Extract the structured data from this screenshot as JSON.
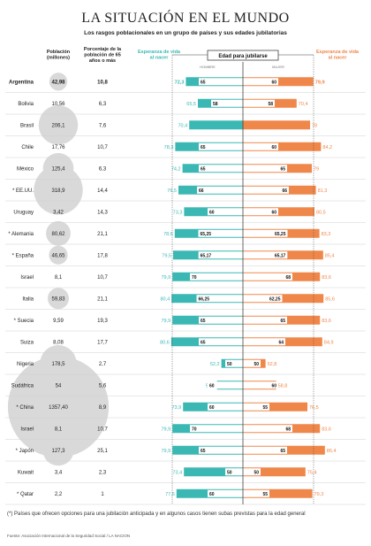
{
  "chart_data": {
    "type": "bar",
    "title": "LA SITUACIÓN EN EL MUNDO",
    "subtitle": "Los rasgos poblacionales en un grupo de países y sus edades jubilatorias",
    "columns": {
      "population": "Población (millones)",
      "pct65": "Porcentaje de la población de 65 años o más",
      "life_men": "Esperanza de vida al nacer",
      "retirement": "Edad para jubilarse",
      "men": "HOMBRE",
      "women": "MUJER",
      "life_women": "Esperanza de vida al nacer"
    },
    "xlim": [
      40,
      100
    ],
    "countries": [
      {
        "name": "Argentina",
        "population": "42,98",
        "pop": 42.98,
        "pct65": "10,8",
        "life_men": "72,3",
        "lm": 72.3,
        "ret_men": "65",
        "rm": 65,
        "ret_women": "60",
        "rw": 60,
        "life_women": "79,9",
        "lw": 79.9,
        "bold": true
      },
      {
        "name": "Bolivia",
        "population": "10,56",
        "pop": 10.56,
        "pct65": "6,3",
        "life_men": "65,5",
        "lm": 65.5,
        "ret_men": "58",
        "rm": 58,
        "ret_women": "58",
        "rw": 58,
        "life_women": "70,4",
        "lw": 70.4
      },
      {
        "name": "Brasil",
        "population": "206,1",
        "pop": 206.1,
        "pct65": "7,6",
        "life_men": "70,4",
        "lm": 70.4,
        "ret_men": "",
        "rm": null,
        "ret_women": "",
        "rw": null,
        "life_women": "78",
        "lw": 78
      },
      {
        "name": "Chile",
        "population": "17,76",
        "pop": 17.76,
        "pct65": "10,7",
        "life_men": "78,3",
        "lm": 78.3,
        "ret_men": "65",
        "rm": 65,
        "ret_women": "60",
        "rw": 60,
        "life_women": "84,2",
        "lw": 84.2
      },
      {
        "name": "México",
        "population": "125,4",
        "pop": 125.4,
        "pct65": "6,3",
        "life_men": "74,2",
        "lm": 74.2,
        "ret_men": "65",
        "rm": 65,
        "ret_women": "65",
        "rw": 65,
        "life_women": "79",
        "lw": 79
      },
      {
        "name": "* EE.UU.",
        "population": "318,9",
        "pop": 318.9,
        "pct65": "14,4",
        "life_men": "76,5",
        "lm": 76.5,
        "ret_men": "66",
        "rm": 66,
        "ret_women": "66",
        "rw": 66,
        "life_women": "81,3",
        "lw": 81.3
      },
      {
        "name": "Uruguay",
        "population": "3,42",
        "pop": 3.42,
        "pct65": "14,3",
        "life_men": "73,3",
        "lm": 73.3,
        "ret_men": "60",
        "rm": 60,
        "ret_women": "60",
        "rw": 60,
        "life_women": "80,5",
        "lw": 80.5
      },
      {
        "name": "* Alemania",
        "population": "80,62",
        "pop": 80.62,
        "pct65": "21,1",
        "life_men": "78,6",
        "lm": 78.6,
        "ret_men": "65,25",
        "rm": 65.25,
        "ret_women": "65,25",
        "rw": 65.25,
        "life_women": "83,3",
        "lw": 83.3
      },
      {
        "name": "* España",
        "population": "46,65",
        "pop": 46.65,
        "pct65": "17,8",
        "life_men": "79,5",
        "lm": 79.5,
        "ret_men": "65,17",
        "rm": 65.17,
        "ret_women": "65,17",
        "rw": 65.17,
        "life_women": "85,4",
        "lw": 85.4
      },
      {
        "name": "Israel",
        "population": "8,1",
        "pop": 8.1,
        "pct65": "10,7",
        "life_men": "79,9",
        "lm": 79.9,
        "ret_men": "70",
        "rm": 70,
        "ret_women": "68",
        "rw": 68,
        "life_women": "83,6",
        "lw": 83.6
      },
      {
        "name": "Italia",
        "population": "59,83",
        "pop": 59.83,
        "pct65": "21,1",
        "life_men": "80,4",
        "lm": 80.4,
        "ret_men": "66,25",
        "rm": 66.25,
        "ret_women": "62,25",
        "rw": 62.25,
        "life_women": "85,6",
        "lw": 85.6
      },
      {
        "name": "* Suecia",
        "population": "9,59",
        "pop": 9.59,
        "pct65": "19,3",
        "life_men": "79,9",
        "lm": 79.9,
        "ret_men": "65",
        "rm": 65,
        "ret_women": "65",
        "rw": 65,
        "life_women": "83,6",
        "lw": 83.6
      },
      {
        "name": "Suiza",
        "population": "8,08",
        "pop": 8.08,
        "pct65": "17,7",
        "life_men": "80,6",
        "lm": 80.6,
        "ret_men": "65",
        "rm": 65,
        "ret_women": "64",
        "rw": 64,
        "life_women": "84,9",
        "lw": 84.9
      },
      {
        "name": "Nigeria",
        "population": "178,5",
        "pop": 178.5,
        "pct65": "2,7",
        "life_men": "52,2",
        "lm": 52.2,
        "ret_men": "50",
        "rm": 50,
        "ret_women": "50",
        "rw": 50,
        "life_women": "52,8",
        "lw": 52.8
      },
      {
        "name": "Sudáfrica",
        "population": "54",
        "pop": 54,
        "pct65": "5,6",
        "life_men": "54,7",
        "lm": 54.7,
        "ret_men": "60",
        "rm": 60,
        "ret_women": "60",
        "rw": 60,
        "life_women": "58,8",
        "lw": 58.8
      },
      {
        "name": "* China",
        "population": "1357,40",
        "pop": 1357.4,
        "pct65": "8,9",
        "life_men": "73,9",
        "lm": 73.9,
        "ret_men": "60",
        "rm": 60,
        "ret_women": "55",
        "rw": 55,
        "life_women": "76,5",
        "lw": 76.5
      },
      {
        "name": "Israel",
        "population": "8,1",
        "pop": 8.1,
        "pct65": "10,7",
        "life_men": "79,9",
        "lm": 79.9,
        "ret_men": "70",
        "rm": 70,
        "ret_women": "68",
        "rw": 68,
        "life_women": "83,6",
        "lw": 83.6
      },
      {
        "name": "* Japón",
        "population": "127,3",
        "pop": 127.3,
        "pct65": "25,1",
        "life_men": "79,9",
        "lm": 79.9,
        "ret_men": "65",
        "rm": 65,
        "ret_women": "65",
        "rw": 65,
        "life_women": "86,4",
        "lw": 86.4
      },
      {
        "name": "Kuwait",
        "population": "3,4",
        "pop": 3.4,
        "pct65": "2,3",
        "life_men": "73,4",
        "lm": 73.4,
        "ret_men": "50",
        "rm": 50,
        "ret_women": "50",
        "rw": 50,
        "life_women": "75,4",
        "lw": 75.4
      },
      {
        "name": "* Qatar",
        "population": "2,2",
        "pop": 2.2,
        "pct65": "1",
        "life_men": "77,6",
        "lm": 77.6,
        "ret_men": "60",
        "rm": 60,
        "ret_women": "55",
        "rw": 55,
        "life_women": "79,3",
        "lw": 79.3
      }
    ],
    "colors": {
      "men": "#3cb8b4",
      "women": "#f0874a",
      "bubble": "#d9d9d9",
      "line": "#444444"
    },
    "footnote": "(*) Países que ofrecen opciones para una jubilación anticipada y en algunos casos tienen subas previstas para la edad general",
    "source": "Fuente: Asociación Internacional de la Seguridad Social / LA NACION"
  }
}
